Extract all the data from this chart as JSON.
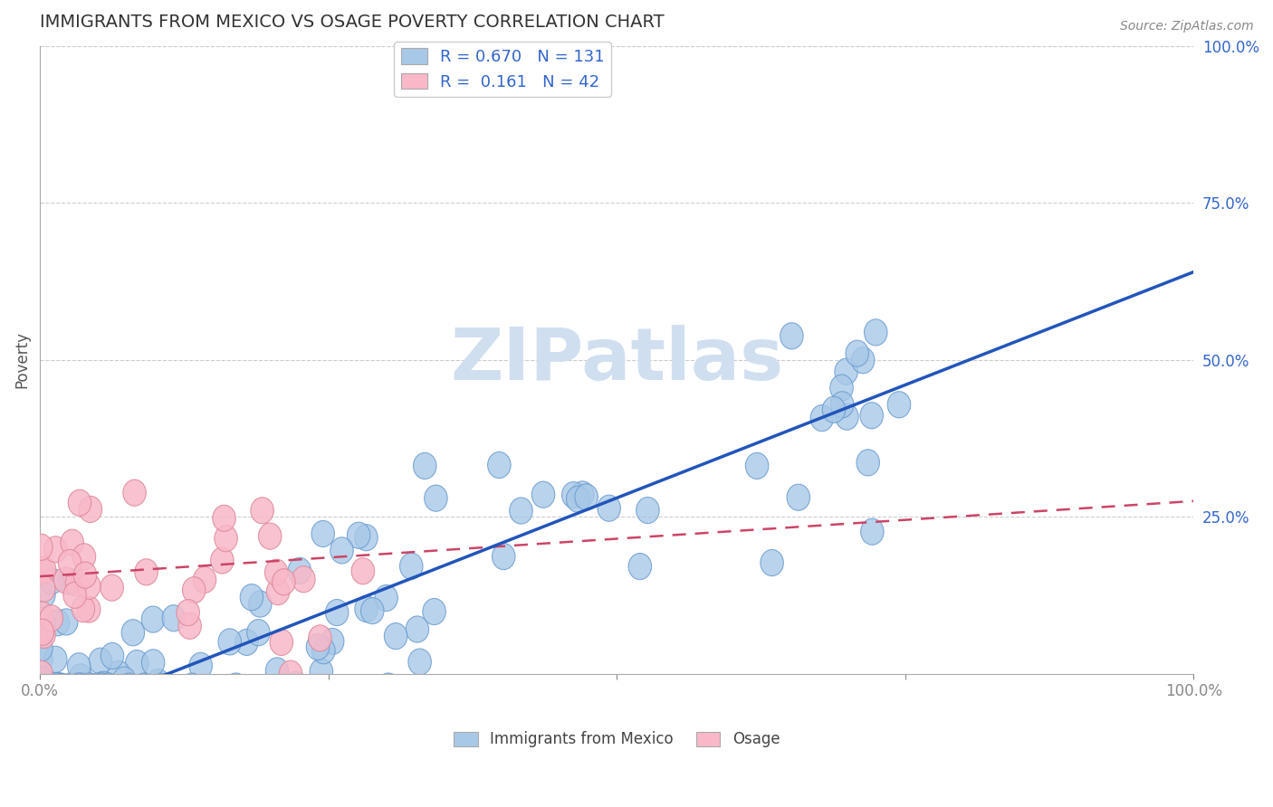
{
  "title": "IMMIGRANTS FROM MEXICO VS OSAGE POVERTY CORRELATION CHART",
  "source": "Source: ZipAtlas.com",
  "ylabel": "Poverty",
  "legend1_label": "Immigrants from Mexico",
  "legend2_label": "Osage",
  "R1": 0.67,
  "N1": 131,
  "R2": 0.161,
  "N2": 42,
  "blue_color": "#A8C8E8",
  "blue_edge_color": "#6699CC",
  "pink_color": "#F8B8C8",
  "pink_edge_color": "#DD8899",
  "blue_line_color": "#2255BB",
  "pink_line_color": "#CC4466",
  "watermark_color": "#D0DFF0",
  "title_color": "#333333",
  "right_tick_color": "#3366CC",
  "ylabel_right_ticks": [
    "0.0%",
    "25.0%",
    "50.0%",
    "75.0%",
    "100.0%"
  ],
  "blue_slope": 0.72,
  "blue_intercept": -0.08,
  "pink_slope": 0.12,
  "pink_intercept": 0.155
}
